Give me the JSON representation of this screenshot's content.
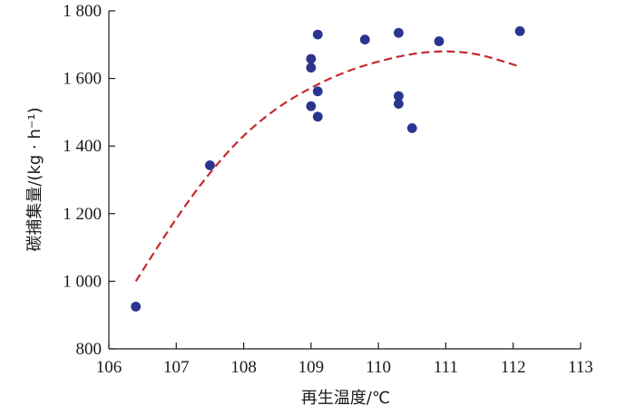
{
  "chart_data": {
    "type": "scatter",
    "title": "",
    "xlabel": "再生温度/℃",
    "ylabel": "碳捕集量/(kg · h⁻¹)",
    "xlim": [
      106,
      113
    ],
    "ylim": [
      800,
      1800
    ],
    "xticks": [
      106,
      107,
      108,
      109,
      110,
      111,
      112,
      113
    ],
    "yticks": [
      800,
      1000,
      1200,
      1400,
      1600,
      1800
    ],
    "xtick_labels": [
      "106",
      "107",
      "108",
      "109",
      "110",
      "111",
      "112",
      "113"
    ],
    "ytick_labels": [
      "800",
      "1 000",
      "1 200",
      "1 400",
      "1 600",
      "1 800"
    ],
    "grid": false,
    "legend": "none",
    "series": [
      {
        "type": "scatter",
        "color": "#2b3590",
        "points": [
          {
            "x": 106.4,
            "y": 925
          },
          {
            "x": 107.5,
            "y": 1343
          },
          {
            "x": 109.0,
            "y": 1658
          },
          {
            "x": 109.0,
            "y": 1632
          },
          {
            "x": 109.0,
            "y": 1518
          },
          {
            "x": 109.1,
            "y": 1730
          },
          {
            "x": 109.1,
            "y": 1562
          },
          {
            "x": 109.1,
            "y": 1487
          },
          {
            "x": 109.8,
            "y": 1715
          },
          {
            "x": 110.3,
            "y": 1735
          },
          {
            "x": 110.3,
            "y": 1548
          },
          {
            "x": 110.3,
            "y": 1525
          },
          {
            "x": 110.5,
            "y": 1453
          },
          {
            "x": 110.9,
            "y": 1710
          },
          {
            "x": 112.1,
            "y": 1740
          }
        ]
      },
      {
        "type": "line",
        "style": "dashed",
        "color": "#c42a2f",
        "points": [
          {
            "x": 106.4,
            "y": 1000
          },
          {
            "x": 107.0,
            "y": 1185
          },
          {
            "x": 107.5,
            "y": 1320
          },
          {
            "x": 108.0,
            "y": 1430
          },
          {
            "x": 108.5,
            "y": 1512
          },
          {
            "x": 109.0,
            "y": 1572
          },
          {
            "x": 109.5,
            "y": 1618
          },
          {
            "x": 110.0,
            "y": 1650
          },
          {
            "x": 110.5,
            "y": 1672
          },
          {
            "x": 111.0,
            "y": 1680
          },
          {
            "x": 111.5,
            "y": 1670
          },
          {
            "x": 112.1,
            "y": 1635
          }
        ]
      }
    ]
  }
}
